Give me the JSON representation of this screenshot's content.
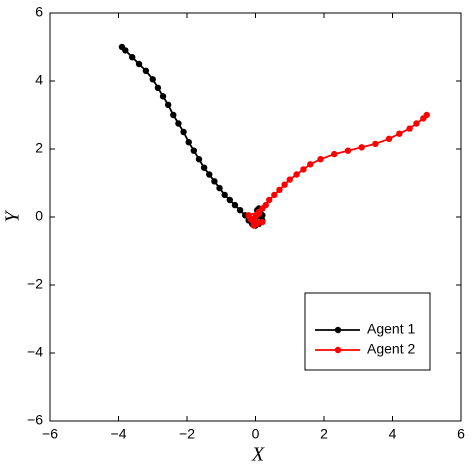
{
  "chart_data": {
    "type": "line",
    "xlabel": "X",
    "ylabel": "Y",
    "xlim": [
      -6,
      6
    ],
    "ylim": [
      -6,
      6
    ],
    "xticks": [
      {
        "value": -6,
        "label": "−6"
      },
      {
        "value": -4,
        "label": "−4"
      },
      {
        "value": -2,
        "label": "−2"
      },
      0,
      2,
      4,
      6
    ],
    "yticks": [
      {
        "value": -6,
        "label": "−6"
      },
      {
        "value": -4,
        "label": "−4"
      },
      {
        "value": -2,
        "label": "−2"
      },
      0,
      2,
      4,
      6
    ],
    "grid": false,
    "legend": "lower right",
    "series": [
      {
        "name": "Agent 1",
        "color": "#000000",
        "x": [
          -3.9,
          -3.8,
          -3.6,
          -3.4,
          -3.2,
          -3.0,
          -2.85,
          -2.7,
          -2.55,
          -2.4,
          -2.25,
          -2.1,
          -1.95,
          -1.8,
          -1.65,
          -1.5,
          -1.35,
          -1.2,
          -1.05,
          -0.9,
          -0.75,
          -0.6,
          -0.45,
          -0.3,
          -0.2,
          -0.1,
          0.0,
          0.1,
          0.2,
          0.15,
          0.05,
          0.1,
          -0.05,
          0.2
        ],
        "y": [
          5.0,
          4.9,
          4.7,
          4.5,
          4.3,
          4.05,
          3.8,
          3.55,
          3.3,
          3.0,
          2.75,
          2.5,
          2.2,
          1.95,
          1.7,
          1.45,
          1.25,
          1.05,
          0.85,
          0.65,
          0.5,
          0.35,
          0.2,
          0.05,
          -0.1,
          -0.2,
          -0.25,
          -0.2,
          -0.1,
          0.1,
          0.2,
          0.25,
          -0.15,
          0.05
        ]
      },
      {
        "name": "Agent 2",
        "color": "#ff0000",
        "x": [
          5.0,
          4.9,
          4.7,
          4.5,
          4.2,
          3.9,
          3.5,
          3.1,
          2.7,
          2.3,
          1.9,
          1.6,
          1.4,
          1.2,
          1.0,
          0.85,
          0.7,
          0.55,
          0.4,
          0.3,
          0.2,
          0.1,
          0.0,
          -0.1,
          0.05,
          -0.2,
          0.1,
          -0.15,
          0.2,
          -0.05
        ],
        "y": [
          3.0,
          2.9,
          2.75,
          2.6,
          2.45,
          2.3,
          2.15,
          2.05,
          1.95,
          1.85,
          1.7,
          1.55,
          1.4,
          1.25,
          1.1,
          0.95,
          0.8,
          0.65,
          0.5,
          0.35,
          0.25,
          0.1,
          0.0,
          -0.1,
          -0.2,
          0.05,
          0.15,
          -0.05,
          -0.15,
          -0.25
        ]
      }
    ]
  }
}
